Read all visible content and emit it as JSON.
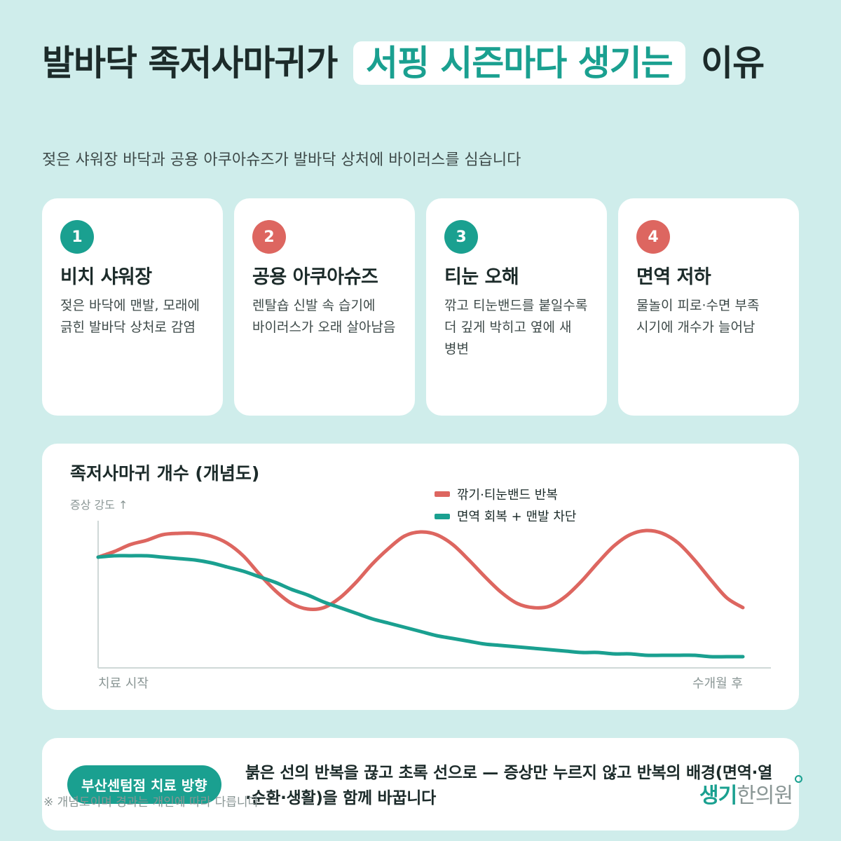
{
  "header": {
    "title_before": "발바닥 족저사마귀가",
    "title_highlight": "서핑 시즌마다 생기는",
    "title_after": "이유",
    "subtitle": "젖은 샤워장 바닥과 공용 아쿠아슈즈가 발바닥 상처에 바이러스를 심습니다"
  },
  "colors": {
    "accent": "#1aa090",
    "alert": "#dd6660",
    "background": "#cfedeb"
  },
  "cards": [
    {
      "num": "1",
      "title": "비치 샤워장",
      "desc": "젖은 바닥에 맨발, 모래에 긁힌 발바닥 상처로 감염",
      "color": "#1aa090"
    },
    {
      "num": "2",
      "title": "공용 아쿠아슈즈",
      "desc": "렌탈숍 신발 속 습기에 바이러스가 오래 살아남음",
      "color": "#dd6660"
    },
    {
      "num": "3",
      "title": "티눈 오해",
      "desc": "깎고 티눈밴드를 붙일수록 더 깊게 박히고 옆에 새 병변",
      "color": "#1aa090"
    },
    {
      "num": "4",
      "title": "면역 저하",
      "desc": "물놀이 피로·수면 부족 시기에 개수가 늘어남",
      "color": "#dd6660"
    }
  ],
  "chart_data": {
    "type": "line",
    "title": "족저사마귀 개수 (개념도)",
    "ylabel": "증상 강도 ↑",
    "xlabel_start": "치료 시작",
    "xlabel_end": "수개월 후",
    "legend_position": "top-right",
    "grid": false,
    "x": [
      0,
      1,
      2,
      3,
      4,
      5,
      6,
      7,
      8,
      9,
      10,
      11,
      12,
      13,
      14,
      15,
      16,
      17,
      18,
      19,
      20,
      21,
      22,
      23,
      24,
      25,
      26,
      27,
      28,
      29,
      30,
      31,
      32,
      33,
      34,
      35,
      36,
      37,
      38,
      39,
      40
    ],
    "ylim": [
      0,
      1
    ],
    "series": [
      {
        "name": "깎기·티눈밴드 반복",
        "color": "#dd6660",
        "values": [
          0.74,
          0.78,
          0.83,
          0.86,
          0.9,
          0.91,
          0.91,
          0.89,
          0.84,
          0.75,
          0.62,
          0.5,
          0.41,
          0.37,
          0.38,
          0.45,
          0.56,
          0.69,
          0.8,
          0.89,
          0.92,
          0.9,
          0.83,
          0.72,
          0.6,
          0.49,
          0.41,
          0.38,
          0.39,
          0.46,
          0.57,
          0.7,
          0.82,
          0.9,
          0.93,
          0.91,
          0.84,
          0.72,
          0.58,
          0.45,
          0.38
        ]
      },
      {
        "name": "면역 회복 + 맨발 차단",
        "color": "#1aa090",
        "values": [
          0.74,
          0.75,
          0.75,
          0.75,
          0.74,
          0.73,
          0.72,
          0.7,
          0.67,
          0.64,
          0.6,
          0.56,
          0.51,
          0.47,
          0.42,
          0.38,
          0.34,
          0.3,
          0.27,
          0.24,
          0.21,
          0.18,
          0.16,
          0.14,
          0.12,
          0.11,
          0.1,
          0.09,
          0.08,
          0.07,
          0.06,
          0.06,
          0.05,
          0.05,
          0.04,
          0.04,
          0.04,
          0.04,
          0.03,
          0.03,
          0.03
        ]
      }
    ]
  },
  "bottom": {
    "badge": "부산센텀점 치료 방향",
    "message": "붉은 선의 반복을 끊고 초록 선으로 — 증상만 누르지 않고 반복의 배경(면역·열·순환·생활)을 함께 바꿉니다"
  },
  "footnote": "※ 개념도이며 경과는 개인에 따라 다릅니다",
  "brand": {
    "name_colored": "생기",
    "name_rest": "한의원"
  }
}
